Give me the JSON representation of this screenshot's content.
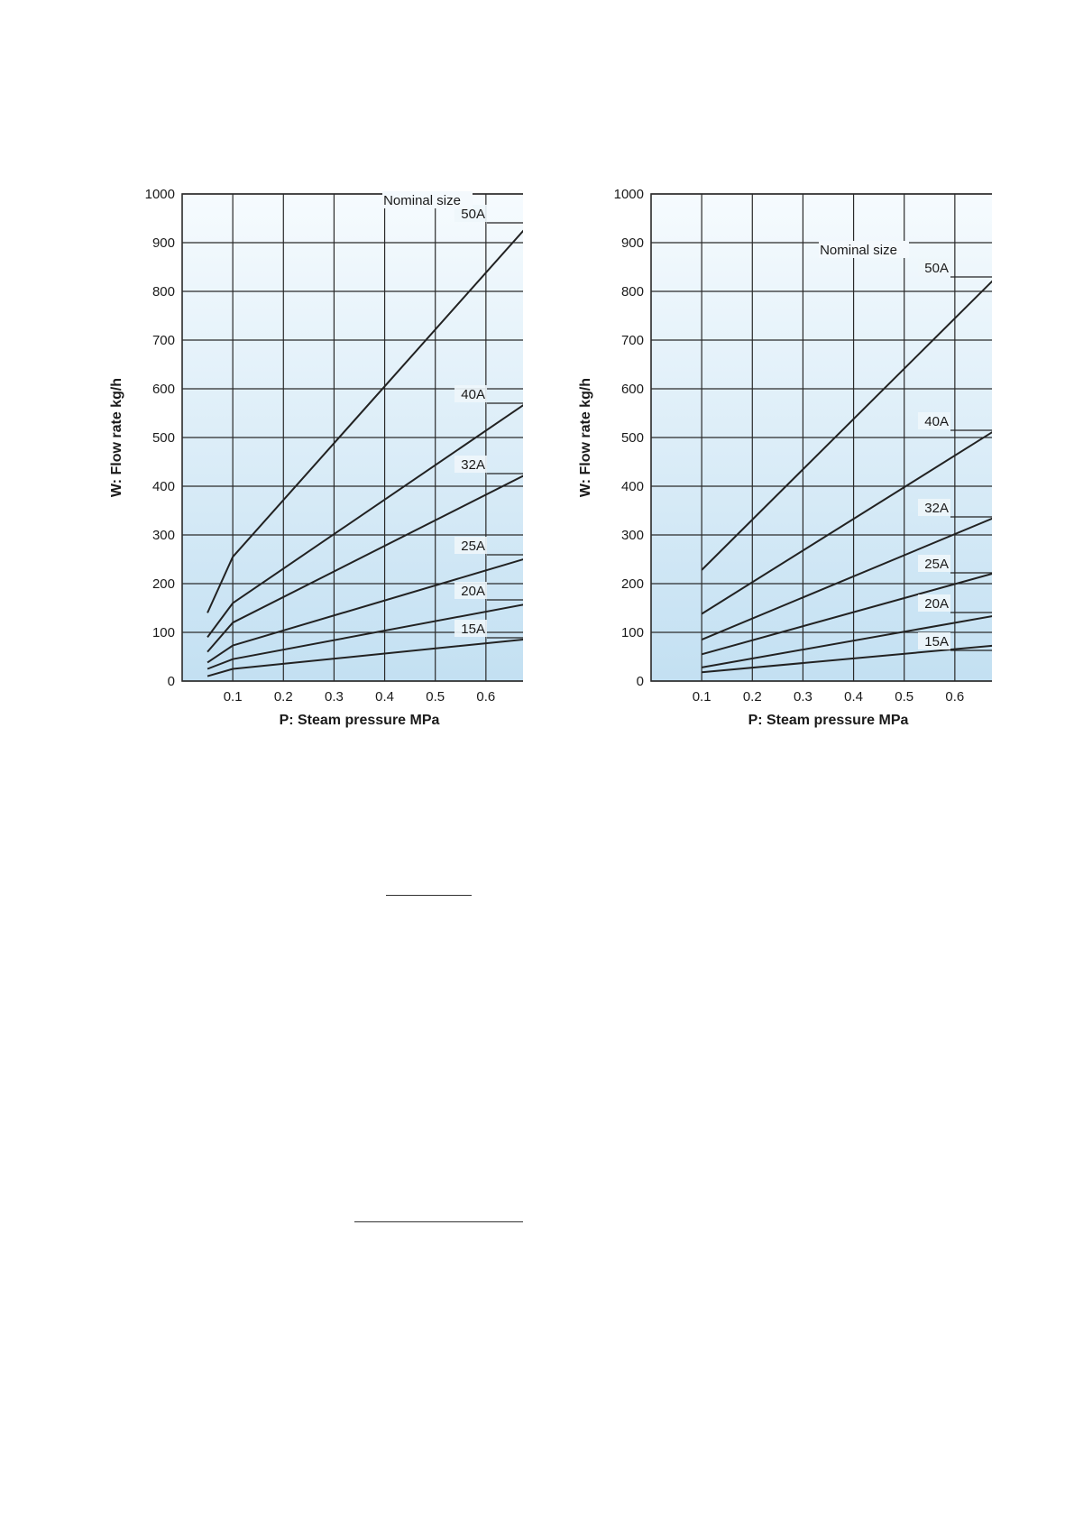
{
  "charts": [
    {
      "ylabel": "W: Flow rate kg/h",
      "xlabel": "P: Steam pressure MPa",
      "header": "Nominal size"
    },
    {
      "ylabel": "W: Flow rate kg/h",
      "xlabel": "P: Steam pressure MPa",
      "header": "Nominal size"
    }
  ],
  "chart_data": [
    {
      "type": "line",
      "title": "",
      "xlabel": "P: Steam pressure MPa",
      "ylabel": "W: Flow rate kg/h",
      "xlim": [
        0,
        0.7
      ],
      "ylim": [
        0,
        1000
      ],
      "xticks": [
        "0.1",
        "0.2",
        "0.3",
        "0.4",
        "0.5",
        "0.6",
        "0.7"
      ],
      "yticks": [
        "0",
        "100",
        "200",
        "300",
        "400",
        "500",
        "600",
        "700",
        "800",
        "900",
        "1000"
      ],
      "grid": true,
      "legend_header": "Nominal size",
      "series": [
        {
          "name": "50A",
          "x": [
            0.05,
            0.1,
            0.7
          ],
          "y": [
            140,
            255,
            955
          ]
        },
        {
          "name": "40A",
          "x": [
            0.05,
            0.1,
            0.7
          ],
          "y": [
            90,
            160,
            585
          ]
        },
        {
          "name": "32A",
          "x": [
            0.05,
            0.1,
            0.7
          ],
          "y": [
            60,
            120,
            435
          ]
        },
        {
          "name": "25A",
          "x": [
            0.05,
            0.1,
            0.7
          ],
          "y": [
            38,
            73,
            258
          ]
        },
        {
          "name": "20A",
          "x": [
            0.05,
            0.1,
            0.7
          ],
          "y": [
            25,
            45,
            162
          ]
        },
        {
          "name": "15A",
          "x": [
            0.05,
            0.1,
            0.7
          ],
          "y": [
            10,
            25,
            88
          ]
        }
      ]
    },
    {
      "type": "line",
      "title": "",
      "xlabel": "P: Steam pressure MPa",
      "ylabel": "W: Flow rate kg/h",
      "xlim": [
        0,
        0.7
      ],
      "ylim": [
        0,
        1000
      ],
      "xticks": [
        "0.1",
        "0.2",
        "0.3",
        "0.4",
        "0.5",
        "0.6",
        "0.7"
      ],
      "yticks": [
        "0",
        "100",
        "200",
        "300",
        "400",
        "500",
        "600",
        "700",
        "800",
        "900",
        "1000"
      ],
      "grid": true,
      "legend_header": "Nominal size",
      "series": [
        {
          "name": "50A",
          "x": [
            0.1,
            0.7
          ],
          "y": [
            228,
            848
          ]
        },
        {
          "name": "40A",
          "x": [
            0.1,
            0.7
          ],
          "y": [
            138,
            528
          ]
        },
        {
          "name": "32A",
          "x": [
            0.1,
            0.7
          ],
          "y": [
            85,
            345
          ]
        },
        {
          "name": "25A",
          "x": [
            0.1,
            0.7
          ],
          "y": [
            55,
            228
          ]
        },
        {
          "name": "20A",
          "x": [
            0.1,
            0.7
          ],
          "y": [
            28,
            138
          ]
        },
        {
          "name": "15A",
          "x": [
            0.1,
            0.7
          ],
          "y": [
            18,
            75
          ]
        }
      ]
    }
  ],
  "colors": {
    "line": "#222222",
    "grid": "#2a2a2a",
    "gradient_top": "#f6fbfe",
    "gradient_bottom": "#c3e0f2"
  }
}
